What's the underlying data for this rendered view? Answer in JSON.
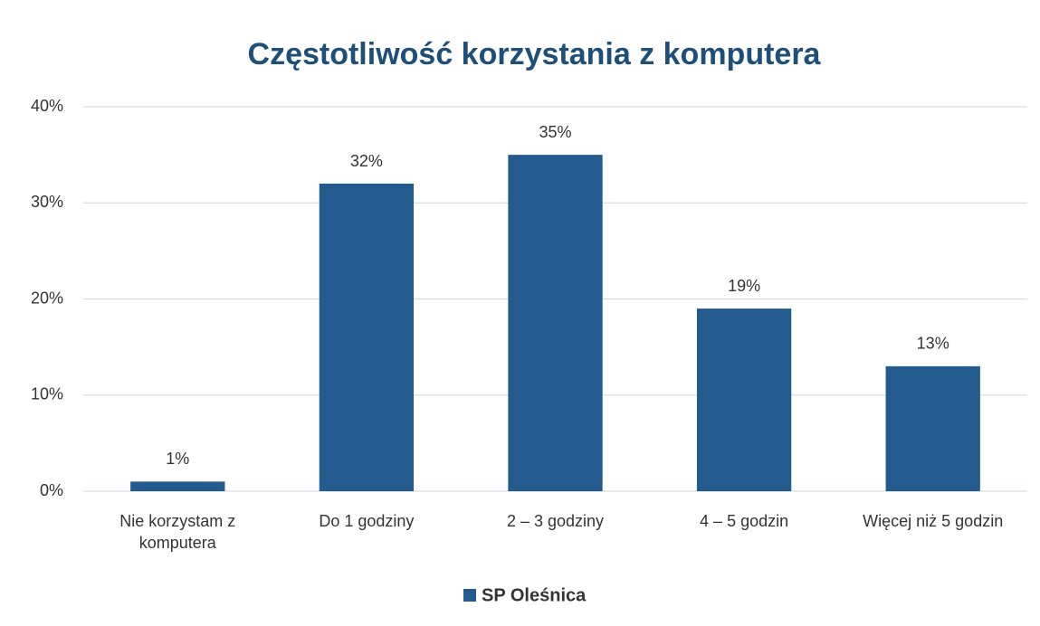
{
  "chart_data": {
    "type": "bar",
    "title": "Częstotliwość korzystania z komputera",
    "categories": [
      "Nie korzystam z komputera",
      "Do 1 godziny",
      "2 – 3 godziny",
      "4 – 5 godzin",
      "Więcej niż 5 godzin"
    ],
    "series": [
      {
        "name": "SP Oleśnica",
        "color": "#245b8e",
        "values": [
          1,
          32,
          35,
          19,
          13
        ],
        "value_labels": [
          "1%",
          "32%",
          "35%",
          "19%",
          "13%"
        ]
      }
    ],
    "ylim": [
      0,
      40
    ],
    "yticks": [
      {
        "value": 0,
        "label": "0%"
      },
      {
        "value": 10,
        "label": "10%"
      },
      {
        "value": 20,
        "label": "20%"
      },
      {
        "value": 30,
        "label": "30%"
      },
      {
        "value": 40,
        "label": "40%"
      }
    ],
    "grid": true,
    "legend": "bottom"
  }
}
